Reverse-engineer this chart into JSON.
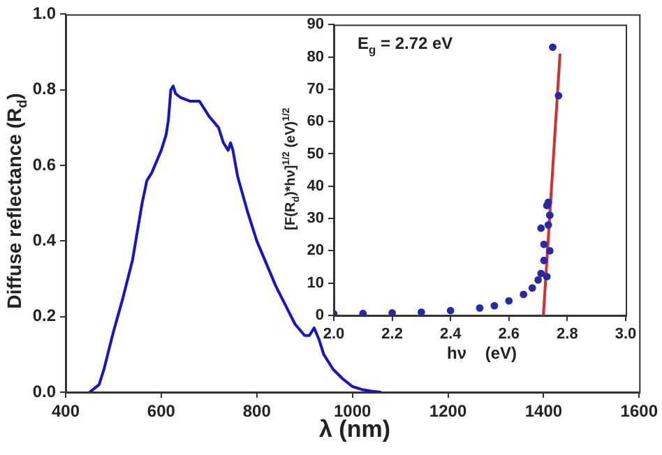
{
  "chart_data": [
    {
      "type": "line",
      "xlabel": "λ (nm)",
      "ylabel": "Diffuse reflectance (R$_{d}$)",
      "marker": "none",
      "grid": false,
      "xlim": [
        400,
        1600
      ],
      "xticks": [
        400,
        600,
        800,
        1000,
        1200,
        1400,
        1600
      ],
      "ylim": [
        0,
        1
      ],
      "yticks": [
        {
          "value": 0,
          "label": "0.0"
        },
        {
          "value": 0.2,
          "label": "0.2"
        },
        {
          "value": 0.4,
          "label": "0.4"
        },
        {
          "value": 0.6,
          "label": "0.6"
        },
        {
          "value": 0.8,
          "label": "0.8"
        },
        {
          "value": 1,
          "label": "1.0"
        }
      ],
      "x": [
        450,
        460,
        470,
        480,
        500,
        520,
        540,
        560,
        570,
        580,
        600,
        610,
        615,
        620,
        625,
        630,
        640,
        660,
        680,
        700,
        720,
        730,
        740,
        745,
        750,
        760,
        780,
        800,
        820,
        840,
        860,
        880,
        900,
        910,
        920,
        930,
        940,
        960,
        980,
        1000,
        1020,
        1040,
        1060
      ],
      "series": [
        {
          "color": "#1414c8",
          "values": [
            0,
            0.01,
            0.02,
            0.06,
            0.16,
            0.25,
            0.35,
            0.5,
            0.56,
            0.58,
            0.64,
            0.68,
            0.72,
            0.8,
            0.81,
            0.79,
            0.78,
            0.77,
            0.77,
            0.73,
            0.7,
            0.66,
            0.64,
            0.66,
            0.64,
            0.57,
            0.48,
            0.4,
            0.34,
            0.28,
            0.23,
            0.18,
            0.15,
            0.15,
            0.17,
            0.14,
            0.1,
            0.06,
            0.035,
            0.015,
            0.007,
            0.003,
            0
          ]
        }
      ]
    },
    {
      "type": "scatter",
      "xlabel": "hν    (eV)",
      "ylabel": "[F(R$_{d}$)*hν]$^{1/2}$ (eV)$^{1/2}$",
      "grid": false,
      "annotations": [
        "E$_{g}$ = 2.72 eV"
      ],
      "xlim": [
        2,
        3
      ],
      "xticks": [
        {
          "value": 2,
          "label": "2.0"
        },
        {
          "value": 2.2,
          "label": "2.2"
        },
        {
          "value": 2.4,
          "label": "2.4"
        },
        {
          "value": 2.6,
          "label": "2.6"
        },
        {
          "value": 2.8,
          "label": "2.8"
        },
        {
          "value": 3,
          "label": "3.0"
        }
      ],
      "ylim": [
        0,
        90
      ],
      "yticks": [
        0,
        10,
        20,
        30,
        40,
        50,
        60,
        70,
        80,
        90
      ],
      "series": [
        {
          "color": "#2828a8",
          "marker": "circle",
          "x": [
            2.0,
            2.1,
            2.2,
            2.3,
            2.4,
            2.5,
            2.55,
            2.6,
            2.65,
            2.68,
            2.7,
            2.71,
            2.72,
            2.72,
            2.71,
            2.73,
            2.735,
            2.74,
            2.735,
            2.74,
            2.73,
            2.75,
            2.77
          ],
          "values": [
            0.5,
            0.6,
            0.8,
            1,
            1.5,
            2.3,
            3,
            4.5,
            6.5,
            8.5,
            11,
            13,
            17,
            22,
            27,
            34,
            35,
            31,
            28,
            20,
            12,
            83,
            68
          ]
        },
        {
          "type": "line",
          "marker": "none",
          "color": "#d03030",
          "x": [
            2.718,
            2.775
          ],
          "values": [
            0,
            81
          ]
        }
      ]
    }
  ]
}
